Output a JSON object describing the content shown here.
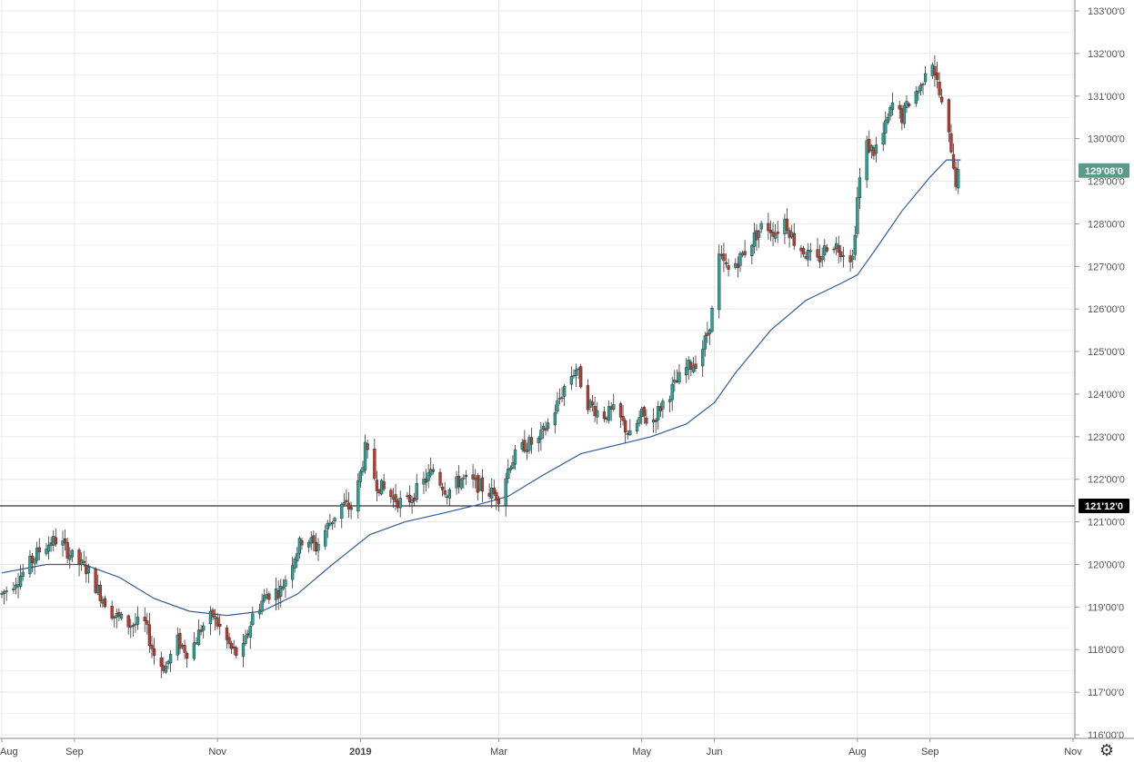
{
  "chart_data": {
    "type": "candlestick",
    "y_axis": {
      "range": [
        116.0,
        133.0
      ],
      "ticks": [
        "116'00'0",
        "117'00'0",
        "118'00'0",
        "119'00'0",
        "120'00'0",
        "121'00'0",
        "122'00'0",
        "123'00'0",
        "124'00'0",
        "125'00'0",
        "126'00'0",
        "127'00'0",
        "128'00'0",
        "129'00'0",
        "130'00'0",
        "131'00'0",
        "132'00'0",
        "133'00'0"
      ],
      "tick_values": [
        116,
        117,
        118,
        119,
        120,
        121,
        122,
        123,
        124,
        125,
        126,
        127,
        128,
        129,
        130,
        131,
        132,
        133
      ]
    },
    "x_axis": {
      "range": [
        "2018-08-01",
        "2019-11-01"
      ],
      "ticks": [
        {
          "label": "Aug",
          "date": "2018-08-01",
          "bold": false
        },
        {
          "label": "Sep",
          "date": "2018-09-01",
          "bold": false
        },
        {
          "label": "Nov",
          "date": "2018-11-01",
          "bold": false
        },
        {
          "label": "2019",
          "date": "2019-01-01",
          "bold": true
        },
        {
          "label": "Mar",
          "date": "2019-03-01",
          "bold": false
        },
        {
          "label": "May",
          "date": "2019-05-01",
          "bold": false
        },
        {
          "label": "Jun",
          "date": "2019-06-01",
          "bold": false
        },
        {
          "label": "Aug",
          "date": "2019-08-01",
          "bold": false
        },
        {
          "label": "Sep",
          "date": "2019-09-01",
          "bold": false
        },
        {
          "label": "Nov",
          "date": "2019-11-01",
          "bold": false
        }
      ]
    },
    "grid": true,
    "horizontal_line": {
      "value": 121.375,
      "label": "121'12'0",
      "color": "#000000"
    },
    "last_price": {
      "value": 129.25,
      "label": "129'08'0",
      "color": "#5b9a8b"
    },
    "colors": {
      "up": "#26a69a",
      "down": "#c0392b",
      "moving_average": "#2e5c9c",
      "grid": "#e8e8e8"
    },
    "close_path": [
      [
        "2018-08-01",
        119.3
      ],
      [
        "2018-08-10",
        119.8
      ],
      [
        "2018-08-18",
        120.4
      ],
      [
        "2018-08-25",
        120.6
      ],
      [
        "2018-09-01",
        120.1
      ],
      [
        "2018-09-06",
        119.9
      ],
      [
        "2018-09-12",
        119.3
      ],
      [
        "2018-09-18",
        118.8
      ],
      [
        "2018-09-24",
        118.6
      ],
      [
        "2018-10-01",
        118.6
      ],
      [
        "2018-10-06",
        117.7
      ],
      [
        "2018-10-10",
        117.6
      ],
      [
        "2018-10-15",
        118.2
      ],
      [
        "2018-10-20",
        117.9
      ],
      [
        "2018-10-25",
        118.5
      ],
      [
        "2018-10-30",
        118.8
      ],
      [
        "2018-11-02",
        118.5
      ],
      [
        "2018-11-07",
        118.0
      ],
      [
        "2018-11-11",
        117.8
      ],
      [
        "2018-11-16",
        118.8
      ],
      [
        "2018-11-22",
        119.3
      ],
      [
        "2018-11-28",
        119.4
      ],
      [
        "2018-12-03",
        120.1
      ],
      [
        "2018-12-08",
        120.7
      ],
      [
        "2018-12-13",
        120.4
      ],
      [
        "2018-12-18",
        120.9
      ],
      [
        "2018-12-24",
        121.4
      ],
      [
        "2018-12-29",
        121.3
      ],
      [
        "2019-01-03",
        122.7
      ],
      [
        "2019-01-08",
        121.9
      ],
      [
        "2019-01-14",
        121.6
      ],
      [
        "2019-01-20",
        121.4
      ],
      [
        "2019-01-26",
        121.8
      ],
      [
        "2019-02-01",
        122.2
      ],
      [
        "2019-02-07",
        121.7
      ],
      [
        "2019-02-13",
        122.0
      ],
      [
        "2019-02-19",
        121.9
      ],
      [
        "2019-02-25",
        121.7
      ],
      [
        "2019-03-01",
        121.6
      ],
      [
        "2019-03-06",
        122.4
      ],
      [
        "2019-03-12",
        122.8
      ],
      [
        "2019-03-18",
        122.9
      ],
      [
        "2019-03-24",
        123.5
      ],
      [
        "2019-03-30",
        124.3
      ],
      [
        "2019-04-03",
        124.6
      ],
      [
        "2019-04-08",
        123.8
      ],
      [
        "2019-04-14",
        123.5
      ],
      [
        "2019-04-20",
        123.6
      ],
      [
        "2019-04-26",
        123.0
      ],
      [
        "2019-05-01",
        123.5
      ],
      [
        "2019-05-05",
        123.3
      ],
      [
        "2019-05-10",
        123.8
      ],
      [
        "2019-05-15",
        124.2
      ],
      [
        "2019-05-20",
        124.6
      ],
      [
        "2019-05-25",
        124.8
      ],
      [
        "2019-05-29",
        125.4
      ],
      [
        "2019-06-01",
        126.2
      ],
      [
        "2019-06-03",
        127.2
      ],
      [
        "2019-06-07",
        126.9
      ],
      [
        "2019-06-12",
        127.2
      ],
      [
        "2019-06-17",
        127.6
      ],
      [
        "2019-06-22",
        128.0
      ],
      [
        "2019-06-27",
        127.8
      ],
      [
        "2019-07-01",
        128.1
      ],
      [
        "2019-07-05",
        127.6
      ],
      [
        "2019-07-10",
        127.3
      ],
      [
        "2019-07-15",
        127.1
      ],
      [
        "2019-07-20",
        127.6
      ],
      [
        "2019-07-25",
        127.4
      ],
      [
        "2019-07-30",
        127.2
      ],
      [
        "2019-08-01",
        128.6
      ],
      [
        "2019-08-04",
        129.9
      ],
      [
        "2019-08-08",
        129.7
      ],
      [
        "2019-08-12",
        130.1
      ],
      [
        "2019-08-16",
        130.8
      ],
      [
        "2019-08-20",
        130.5
      ],
      [
        "2019-08-24",
        131.0
      ],
      [
        "2019-08-28",
        131.2
      ],
      [
        "2019-09-01",
        132.1
      ],
      [
        "2019-09-04",
        131.3
      ],
      [
        "2019-09-07",
        130.5
      ],
      [
        "2019-09-10",
        129.8
      ],
      [
        "2019-09-12",
        129.0
      ],
      [
        "2019-09-14",
        129.25
      ]
    ],
    "moving_average": [
      [
        "2018-08-01",
        119.8
      ],
      [
        "2018-08-20",
        120.0
      ],
      [
        "2018-09-05",
        120.0
      ],
      [
        "2018-09-20",
        119.7
      ],
      [
        "2018-10-05",
        119.2
      ],
      [
        "2018-10-20",
        118.9
      ],
      [
        "2018-11-05",
        118.8
      ],
      [
        "2018-11-20",
        118.9
      ],
      [
        "2018-12-05",
        119.3
      ],
      [
        "2018-12-20",
        120.0
      ],
      [
        "2019-01-05",
        120.7
      ],
      [
        "2019-01-20",
        121.0
      ],
      [
        "2019-02-05",
        121.2
      ],
      [
        "2019-02-20",
        121.4
      ],
      [
        "2019-03-05",
        121.6
      ],
      [
        "2019-03-20",
        122.1
      ],
      [
        "2019-04-05",
        122.6
      ],
      [
        "2019-04-20",
        122.8
      ],
      [
        "2019-05-05",
        123.0
      ],
      [
        "2019-05-20",
        123.3
      ],
      [
        "2019-06-01",
        123.8
      ],
      [
        "2019-06-10",
        124.5
      ],
      [
        "2019-06-25",
        125.5
      ],
      [
        "2019-07-10",
        126.2
      ],
      [
        "2019-07-25",
        126.6
      ],
      [
        "2019-08-01",
        126.8
      ],
      [
        "2019-08-10",
        127.5
      ],
      [
        "2019-08-20",
        128.3
      ],
      [
        "2019-09-01",
        129.1
      ],
      [
        "2019-09-08",
        129.5
      ],
      [
        "2019-09-14",
        129.5
      ]
    ]
  },
  "controls": {
    "settings_icon": "gear-icon",
    "settings_glyph": "⚙"
  }
}
